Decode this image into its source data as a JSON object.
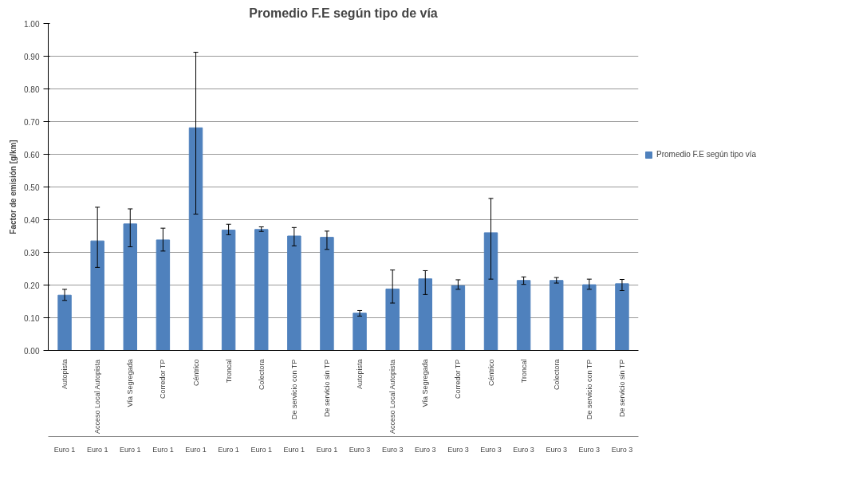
{
  "chart_data": {
    "type": "bar",
    "title": "Promedio F.E según tipo de vía",
    "ylabel": "Factor de emisión [g/km]",
    "categories": [
      [
        "Autopista",
        "Euro 1"
      ],
      [
        "Acceso Local Autopista",
        "Euro 1"
      ],
      [
        "Vía Segregada",
        "Euro 1"
      ],
      [
        "Corredor TP",
        "Euro 1"
      ],
      [
        "Céntrico",
        "Euro 1"
      ],
      [
        "Troncal",
        "Euro 1"
      ],
      [
        "Colectora",
        "Euro 1"
      ],
      [
        "De servicio con TP",
        "Euro 1"
      ],
      [
        "De servicio sin TP",
        "Euro 1"
      ],
      [
        "Autopista",
        "Euro 3"
      ],
      [
        "Acceso Local Autopista",
        "Euro 3"
      ],
      [
        "Vía Segregada",
        "Euro 3"
      ],
      [
        "Corredor TP",
        "Euro 3"
      ],
      [
        "Céntrico",
        "Euro 3"
      ],
      [
        "Troncal",
        "Euro 3"
      ],
      [
        "Colectora",
        "Euro 3"
      ],
      [
        "De servicio con TP",
        "Euro 3"
      ],
      [
        "De servicio sin TP",
        "Euro 3"
      ]
    ],
    "series": [
      {
        "name": "Promedio F.E según tipo vía",
        "color": "#4f81bd",
        "values": [
          0.169,
          0.335,
          0.387,
          0.338,
          0.681,
          0.368,
          0.37,
          0.35,
          0.346,
          0.114,
          0.188,
          0.219,
          0.198,
          0.36,
          0.214,
          0.214,
          0.201,
          0.204
        ],
        "errors": [
          [
            0.153,
            0.187
          ],
          [
            0.254,
            0.438
          ],
          [
            0.317,
            0.433
          ],
          [
            0.304,
            0.374
          ],
          [
            0.417,
            0.912
          ],
          [
            0.354,
            0.386
          ],
          [
            0.364,
            0.378
          ],
          [
            0.32,
            0.376
          ],
          [
            0.309,
            0.365
          ],
          [
            0.105,
            0.122
          ],
          [
            0.145,
            0.246
          ],
          [
            0.171,
            0.244
          ],
          [
            0.187,
            0.216
          ],
          [
            0.218,
            0.465
          ],
          [
            0.202,
            0.225
          ],
          [
            0.206,
            0.223
          ],
          [
            0.187,
            0.218
          ],
          [
            0.183,
            0.217
          ]
        ]
      }
    ],
    "ylim": [
      0,
      1.0
    ],
    "yticks": [
      {
        "value": 0,
        "label": "0.00"
      },
      {
        "value": 0.1,
        "label": "0.10"
      },
      {
        "value": 0.2,
        "label": "0.20"
      },
      {
        "value": 0.3,
        "label": "0.30"
      },
      {
        "value": 0.4,
        "label": "0.40"
      },
      {
        "value": 0.5,
        "label": "0.50"
      },
      {
        "value": 0.6,
        "label": "0.60"
      },
      {
        "value": 0.7,
        "label": "0.70"
      },
      {
        "value": 0.8,
        "label": "0.80"
      },
      {
        "value": 0.9,
        "label": "0.90"
      },
      {
        "value": 1.0,
        "label": "1.00"
      }
    ],
    "grid": "y",
    "legend": "right"
  }
}
